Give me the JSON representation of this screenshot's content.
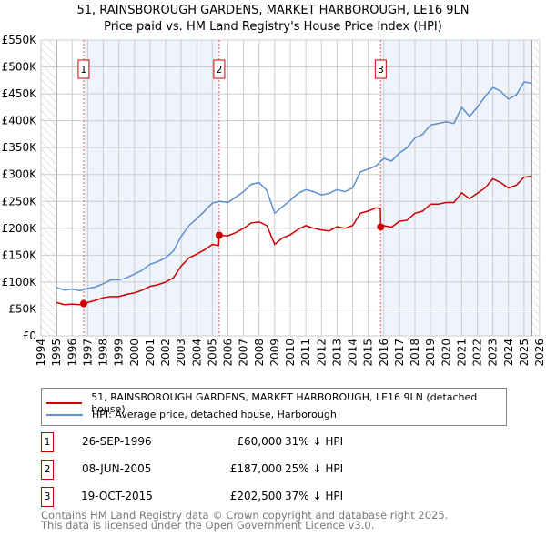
{
  "chart_data": {
    "type": "line",
    "title": "51, RAINSBOROUGH GARDENS, MARKET HARBOROUGH, LE16 9LN",
    "subtitle": "Price paid vs. HM Land Registry's House Price Index (HPI)",
    "xlim": [
      1994,
      2026
    ],
    "ylim": [
      0,
      550000
    ],
    "x_ticks": [
      "1994",
      "1995",
      "1996",
      "1997",
      "1998",
      "1999",
      "2000",
      "2001",
      "2002",
      "2003",
      "2004",
      "2005",
      "2006",
      "2007",
      "2008",
      "2009",
      "2010",
      "2011",
      "2012",
      "2013",
      "2014",
      "2015",
      "2016",
      "2017",
      "2018",
      "2019",
      "2020",
      "2021",
      "2022",
      "2023",
      "2024",
      "2025",
      "2026"
    ],
    "y_ticks": [
      {
        "v": 0,
        "l": "£0"
      },
      {
        "v": 50000,
        "l": "£50K"
      },
      {
        "v": 100000,
        "l": "£100K"
      },
      {
        "v": 150000,
        "l": "£150K"
      },
      {
        "v": 200000,
        "l": "£200K"
      },
      {
        "v": 250000,
        "l": "£250K"
      },
      {
        "v": 300000,
        "l": "£300K"
      },
      {
        "v": 350000,
        "l": "£350K"
      },
      {
        "v": 400000,
        "l": "£400K"
      },
      {
        "v": 450000,
        "l": "£450K"
      },
      {
        "v": 500000,
        "l": "£500K"
      },
      {
        "v": 550000,
        "l": "£550K"
      }
    ],
    "grid": true,
    "data_range": [
      1995,
      2025.5
    ],
    "series": [
      {
        "name": "51, RAINSBOROUGH GARDENS, MARKET HARBOROUGH, LE16 9LN (detached house)",
        "color": "#cc0000",
        "x": [
          1995,
          1995.5,
          1996,
          1996.5,
          1996.74,
          1997,
          1997.5,
          1998,
          1998.5,
          1999,
          1999.5,
          2000,
          2000.5,
          2001,
          2001.5,
          2002,
          2002.5,
          2003,
          2003.5,
          2004,
          2004.5,
          2005,
          2005.4,
          2005.44,
          2006,
          2006.5,
          2007,
          2007.5,
          2008,
          2008.5,
          2009,
          2009.5,
          2010,
          2010.5,
          2011,
          2011.5,
          2012,
          2012.5,
          2013,
          2013.5,
          2014,
          2014.5,
          2015,
          2015.5,
          2015.78,
          2015.8,
          2016,
          2016.5,
          2017,
          2017.5,
          2018,
          2018.5,
          2019,
          2019.5,
          2020,
          2020.5,
          2021,
          2021.5,
          2022,
          2022.5,
          2023,
          2023.5,
          2024,
          2024.5,
          2025,
          2025.5
        ],
        "y": [
          62,
          58,
          59,
          58,
          60,
          62,
          66,
          71,
          73,
          73,
          77,
          80,
          85,
          92,
          95,
          100,
          108,
          130,
          145,
          152,
          160,
          170,
          168,
          187,
          186,
          192,
          200,
          210,
          212,
          205,
          170,
          182,
          188,
          198,
          205,
          200,
          197,
          195,
          203,
          200,
          205,
          228,
          232,
          238,
          237,
          202.5,
          205,
          202,
          213,
          215,
          228,
          232,
          245,
          245,
          248,
          248,
          266,
          255,
          265,
          275,
          292,
          285,
          275,
          280,
          295,
          297
        ]
      },
      {
        "name": "HPI: Average price, detached house, Harborough",
        "color": "#5b8fd0",
        "x": [
          1995,
          1995.5,
          1996,
          1996.5,
          1997,
          1997.5,
          1998,
          1998.5,
          1999,
          1999.5,
          2000,
          2000.5,
          2001,
          2001.5,
          2002,
          2002.5,
          2003,
          2003.5,
          2004,
          2004.5,
          2005,
          2005.5,
          2006,
          2006.5,
          2007,
          2007.5,
          2008,
          2008.5,
          2009,
          2009.5,
          2010,
          2010.5,
          2011,
          2011.5,
          2012,
          2012.5,
          2013,
          2013.5,
          2014,
          2014.5,
          2015,
          2015.5,
          2016,
          2016.5,
          2017,
          2017.5,
          2018,
          2018.5,
          2019,
          2019.5,
          2020,
          2020.5,
          2021,
          2021.5,
          2022,
          2022.5,
          2023,
          2023.5,
          2024,
          2024.5,
          2025,
          2025.5
        ],
        "y": [
          90,
          85,
          87,
          84,
          88,
          91,
          97,
          104,
          104,
          108,
          115,
          122,
          133,
          138,
          145,
          158,
          185,
          205,
          218,
          232,
          247,
          250,
          248,
          258,
          268,
          282,
          285,
          270,
          228,
          240,
          252,
          265,
          272,
          268,
          262,
          265,
          272,
          268,
          275,
          305,
          310,
          316,
          330,
          325,
          340,
          350,
          368,
          375,
          392,
          395,
          398,
          395,
          425,
          408,
          425,
          445,
          462,
          455,
          440,
          448,
          472,
          470
        ]
      }
    ],
    "sales": [
      {
        "n": "1",
        "x": 1996.74,
        "date": "26-SEP-1996",
        "price": "£60,000",
        "value": 60000,
        "hpi": "31% ↓ HPI"
      },
      {
        "n": "2",
        "x": 2005.44,
        "date": "08-JUN-2005",
        "price": "£187,000",
        "value": 187000,
        "hpi": "25% ↓ HPI"
      },
      {
        "n": "3",
        "x": 2015.8,
        "date": "19-OCT-2015",
        "price": "£202,500",
        "value": 202500,
        "hpi": "37% ↓ HPI"
      }
    ],
    "legend_position": "below"
  },
  "footer": {
    "line1": "Contains HM Land Registry data © Crown copyright and database right 2025.",
    "line2": "This data is licensed under the Open Government Licence v3.0."
  }
}
